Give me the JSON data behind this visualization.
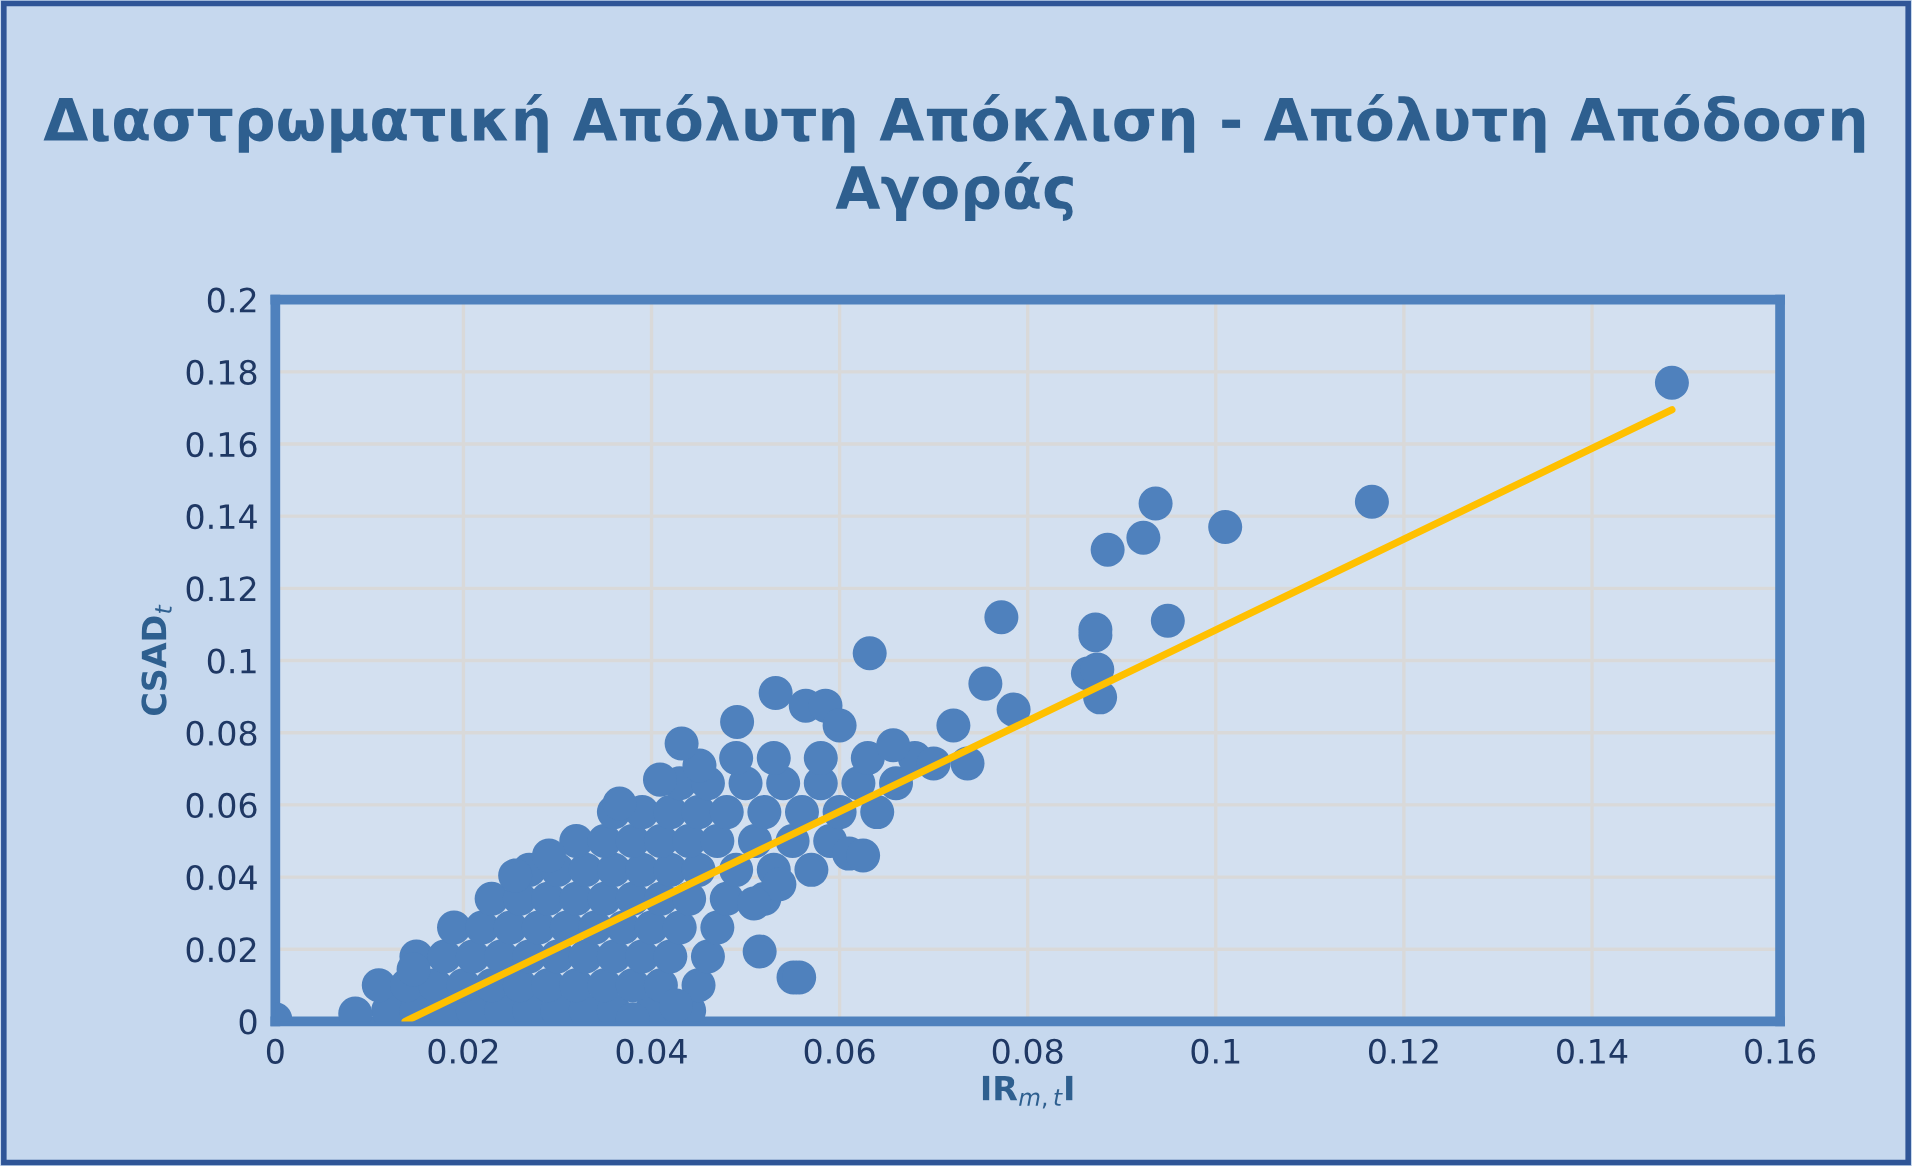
{
  "chart_data": {
    "type": "scatter",
    "title": "Διαστρωματική Απόλυτη Απόκλιση - Απόλυτη Απόδοση Αγοράς",
    "xlabel": "IR$_{m,t}$I",
    "ylabel": "CSAD$_{t}$",
    "xlim": [
      0,
      0.16
    ],
    "ylim": [
      0,
      0.2
    ],
    "xticks": [
      0,
      0.02,
      0.04,
      0.06,
      0.08,
      0.1,
      0.12,
      0.14,
      0.16
    ],
    "yticks": [
      0,
      0.02,
      0.04,
      0.06,
      0.08,
      0.1,
      0.12,
      0.14,
      0.16,
      0.18,
      0.2
    ],
    "grid": true,
    "series": [
      {
        "color": "#4f81bd",
        "marker": "circle",
        "x": [
          0.012,
          0.015,
          0.018,
          0.021,
          0.024,
          0.027,
          0.03,
          0.033,
          0.036,
          0.04,
          0.044,
          0.011,
          0.014,
          0.017,
          0.02,
          0.023,
          0.026,
          0.029,
          0.032,
          0.035,
          0.038,
          0.041,
          0.045,
          0.015,
          0.018,
          0.021,
          0.024,
          0.027,
          0.03,
          0.033,
          0.036,
          0.039,
          0.042,
          0.046,
          0.019,
          0.022,
          0.025,
          0.028,
          0.031,
          0.034,
          0.037,
          0.04,
          0.043,
          0.047,
          0.023,
          0.026,
          0.029,
          0.032,
          0.035,
          0.038,
          0.041,
          0.044,
          0.048,
          0.052,
          0.027,
          0.03,
          0.033,
          0.036,
          0.039,
          0.042,
          0.045,
          0.049,
          0.053,
          0.057,
          0.032,
          0.035,
          0.038,
          0.041,
          0.044,
          0.047,
          0.051,
          0.055,
          0.059,
          0.036,
          0.039,
          0.042,
          0.045,
          0.048,
          0.052,
          0.056,
          0.06,
          0.064,
          0.043,
          0.046,
          0.05,
          0.054,
          0.058,
          0.062,
          0.066,
          0.049,
          0.053,
          0.058,
          0.063,
          0.068,
          0.0085,
          0.0147,
          0.0255,
          0.0291,
          0.0366,
          0.0409,
          0.0451,
          0.0432,
          0.0491,
          0.0532,
          0.0564,
          0.0585,
          0.061,
          0.0551,
          0.0515,
          0.0426,
          0,
          0.038,
          0.0536,
          0.0509,
          0.0557,
          0.06,
          0.0625,
          0.0657,
          0.07,
          0.0721,
          0.0736,
          0.0632,
          0.0755,
          0.0785,
          0.0772,
          0.0864,
          0.0874,
          0.0877,
          0.0872,
          0.0872,
          0.0949,
          0.0885,
          0.0923,
          0.0936,
          0.101,
          0.1166,
          0.1485
        ],
        "values": [
          0.003,
          0.003,
          0.003,
          0.003,
          0.003,
          0.003,
          0.003,
          0.003,
          0.003,
          0.003,
          0.003,
          0.01,
          0.01,
          0.01,
          0.01,
          0.01,
          0.01,
          0.01,
          0.01,
          0.01,
          0.01,
          0.01,
          0.01,
          0.018,
          0.018,
          0.018,
          0.018,
          0.018,
          0.018,
          0.018,
          0.018,
          0.018,
          0.018,
          0.018,
          0.026,
          0.026,
          0.026,
          0.026,
          0.026,
          0.026,
          0.026,
          0.026,
          0.026,
          0.026,
          0.034,
          0.034,
          0.034,
          0.034,
          0.034,
          0.034,
          0.034,
          0.034,
          0.034,
          0.034,
          0.042,
          0.042,
          0.042,
          0.042,
          0.042,
          0.042,
          0.042,
          0.042,
          0.042,
          0.042,
          0.05,
          0.05,
          0.05,
          0.05,
          0.05,
          0.05,
          0.05,
          0.05,
          0.05,
          0.058,
          0.058,
          0.058,
          0.058,
          0.058,
          0.058,
          0.058,
          0.058,
          0.058,
          0.066,
          0.066,
          0.066,
          0.066,
          0.066,
          0.066,
          0.066,
          0.073,
          0.073,
          0.073,
          0.073,
          0.073,
          0.0022,
          0.0144,
          0.0404,
          0.046,
          0.0604,
          0.067,
          0.0709,
          0.077,
          0.083,
          0.091,
          0.0875,
          0.0875,
          0.0465,
          0.0122,
          0.0194,
          0.0044,
          0.0006,
          0.0006,
          0.038,
          0.0327,
          0.0122,
          0.082,
          0.046,
          0.0765,
          0.0715,
          0.082,
          0.0715,
          0.102,
          0.0936,
          0.0864,
          0.112,
          0.0964,
          0.0975,
          0.0898,
          0.1086,
          0.107,
          0.111,
          0.1307,
          0.134,
          0.1435,
          0.137,
          0.144,
          0.177
        ]
      },
      {
        "type": "line",
        "color": "#ffc000",
        "x": [
          0.0138,
          0.1485
        ],
        "values": [
          0,
          0.1695
        ]
      }
    ]
  }
}
